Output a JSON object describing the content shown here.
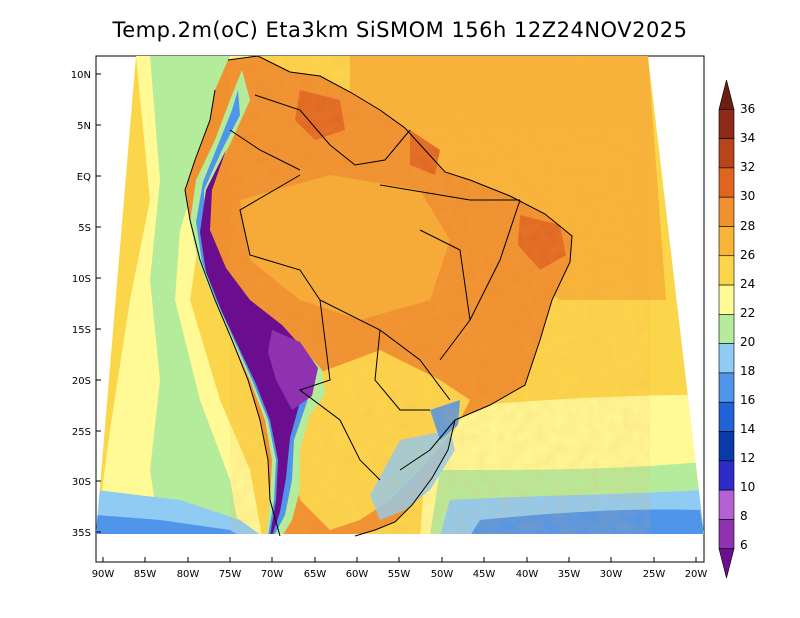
{
  "title": "Temp.2m(oC) Eta3km SiSMOM 156h 12Z24NOV2025",
  "variable": "Temp.2m",
  "units": "oC",
  "lat_labels": [
    "10N",
    "5N",
    "EQ",
    "5S",
    "10S",
    "15S",
    "20S",
    "25S",
    "30S",
    "35S"
  ],
  "lon_labels": [
    "90W",
    "85W",
    "80W",
    "75W",
    "70W",
    "65W",
    "60W",
    "55W",
    "50W",
    "45W",
    "40W",
    "35W",
    "30W",
    "25W",
    "20W"
  ],
  "colorbar": {
    "labels": [
      "6",
      "8",
      "10",
      "12",
      "14",
      "16",
      "18",
      "20",
      "22",
      "24",
      "26",
      "28",
      "30",
      "32",
      "34",
      "36"
    ],
    "colors": [
      "#6a0d8e",
      "#8e32b0",
      "#b461d4",
      "#2c2cc8",
      "#0a3aa8",
      "#1f63d6",
      "#4f95ea",
      "#8fcbf2",
      "#b5ec9c",
      "#fffa96",
      "#fcd64a",
      "#f8b438",
      "#f0902e",
      "#e06620",
      "#b8441c",
      "#8e2a1a",
      "#6a1f12"
    ]
  },
  "colors": {
    "ocean_warm": "#f8b438",
    "ocean_mild": "#fcd64a",
    "ocean_cool": "#fffa96",
    "pacific_cool": "#b5ec9c",
    "coast_cold": "#8fcbf2",
    "south_cold": "#4f95ea",
    "andes": "#6a0d8e",
    "land_hot": "#f0902e"
  }
}
